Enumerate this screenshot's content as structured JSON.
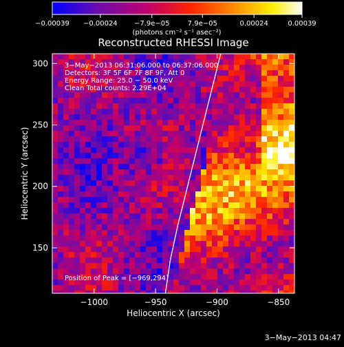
{
  "chart_data": {
    "type": "heatmap",
    "title": "Reconstructed RHESSI Image",
    "xlabel": "Heliocentric X (arcsec)",
    "ylabel": "Heliocentric Y (arcsec)",
    "xlim": [
      -1034,
      -837
    ],
    "ylim": [
      113,
      308
    ],
    "x_ticks": [
      -1000,
      -950,
      -900,
      -850
    ],
    "x_tick_labels": [
      "−1000",
      "−950",
      "−900",
      "−850"
    ],
    "y_ticks": [
      150,
      200,
      250,
      300
    ],
    "y_tick_labels": [
      "150",
      "200",
      "250",
      "300"
    ],
    "colorbar": {
      "range": [
        -0.00039,
        0.00039
      ],
      "tick_values": [
        -0.00039,
        -0.00024,
        -7.9e-05,
        7.9e-05,
        0.00024,
        0.00039
      ],
      "tick_labels": [
        "−0.00039",
        "−0.00024",
        "−7.9e−05",
        "7.9e−05",
        "0.00024",
        "0.00039"
      ],
      "units": "(photons cm⁻² s⁻¹ asec⁻²)",
      "colors": [
        "#0000ff",
        "#6a0dad",
        "#c0006e",
        "#ff2200",
        "#ff8800",
        "#ffee00",
        "#ffffff"
      ]
    },
    "annotations": {
      "time_range": "3−May−2013 06:31:06.000 to 06:37:06.000",
      "detectors": "Detectors: 3F 5F 6F 7F 8F 9F, Att 0",
      "energy": "Energy Range: 25.0 − 50.0 keV",
      "clean": "Clean    Total counts: 2.29E+04",
      "peak": "Position of Peak = [−969,294]"
    },
    "limb_curve": {
      "x": [
        -942,
        -938,
        -932,
        -925,
        -918,
        -911,
        -904,
        -897
      ],
      "y": [
        113,
        140,
        168,
        196,
        224,
        252,
        280,
        308
      ]
    },
    "footer": "3−May−2013 04:47"
  }
}
